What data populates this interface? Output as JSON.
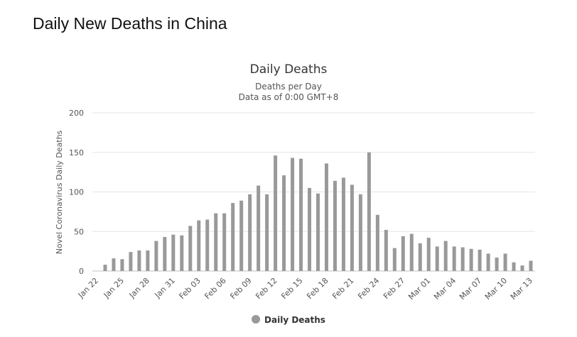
{
  "page_heading": "Daily New Deaths in China",
  "chart_data": {
    "type": "bar",
    "title": "Daily Deaths",
    "subtitle_line1": "Deaths per Day",
    "subtitle_line2": "Data as of 0:00 GMT+8",
    "xlabel": "",
    "ylabel": "Novel Coronavirus Daily Deaths",
    "ylim": [
      0,
      200
    ],
    "yticks": [
      0,
      50,
      100,
      150,
      200
    ],
    "grid": true,
    "legend_position": "bottom-center",
    "bar_color": "#999999",
    "categories": [
      "Jan 22",
      "Jan 23",
      "Jan 24",
      "Jan 25",
      "Jan 26",
      "Jan 27",
      "Jan 28",
      "Jan 29",
      "Jan 30",
      "Jan 31",
      "Feb 01",
      "Feb 02",
      "Feb 03",
      "Feb 04",
      "Feb 05",
      "Feb 06",
      "Feb 07",
      "Feb 08",
      "Feb 09",
      "Feb 10",
      "Feb 11",
      "Feb 12",
      "Feb 13",
      "Feb 14",
      "Feb 15",
      "Feb 16",
      "Feb 17",
      "Feb 18",
      "Feb 19",
      "Feb 20",
      "Feb 21",
      "Feb 22",
      "Feb 23",
      "Feb 24",
      "Feb 25",
      "Feb 26",
      "Feb 27",
      "Feb 28",
      "Feb 29",
      "Mar 01",
      "Mar 02",
      "Mar 03",
      "Mar 04",
      "Mar 05",
      "Mar 06",
      "Mar 07",
      "Mar 08",
      "Mar 09",
      "Mar 10",
      "Mar 11",
      "Mar 12",
      "Mar 13"
    ],
    "tick_labels": [
      "Jan 22",
      "Jan 25",
      "Jan 28",
      "Jan 31",
      "Feb 03",
      "Feb 06",
      "Feb 09",
      "Feb 12",
      "Feb 15",
      "Feb 18",
      "Feb 21",
      "Feb 24",
      "Feb 27",
      "Mar 01",
      "Mar 04",
      "Mar 07",
      "Mar 10",
      "Mar 13"
    ],
    "series": [
      {
        "name": "Daily Deaths",
        "values": [
          0,
          8,
          16,
          15,
          24,
          26,
          26,
          38,
          43,
          46,
          45,
          57,
          64,
          65,
          73,
          73,
          86,
          89,
          97,
          108,
          97,
          146,
          121,
          143,
          142,
          105,
          98,
          136,
          114,
          118,
          109,
          97,
          150,
          71,
          52,
          29,
          44,
          47,
          35,
          42,
          31,
          38,
          31,
          30,
          28,
          27,
          22,
          17,
          22,
          11,
          7,
          13
        ]
      }
    ]
  }
}
